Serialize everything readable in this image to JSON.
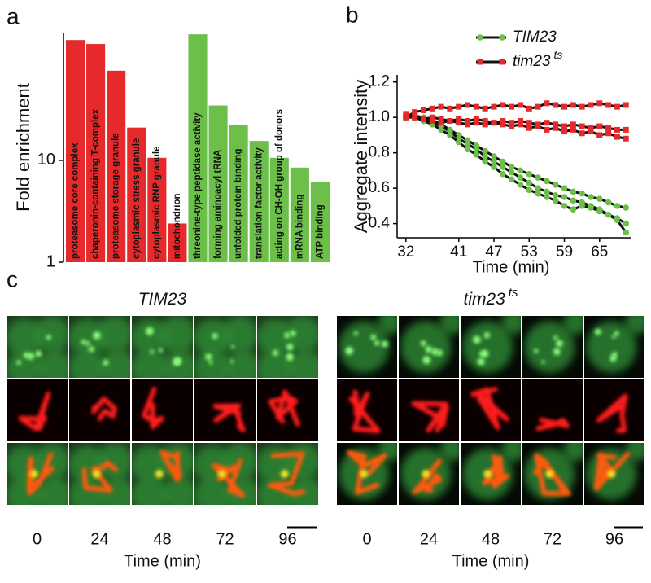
{
  "panel_labels": [
    "a",
    "b",
    "c"
  ],
  "chart_data": [
    {
      "type": "bar",
      "ylabel": "Fold enrichment",
      "log_scale": true,
      "categories": [
        "proteasome core complex",
        "chaperonin-containing T-complex",
        "proteasome storage granule",
        "cytoplasmic stress granule",
        "cytoplasmic RNP granule",
        "mitochondrion",
        "threonine-type peptidase activity",
        "forming aminoacyl tRNA",
        "unfolded protein binding",
        "translation factor activity",
        "acting on CH-OH group of donors",
        "mRNA binding",
        "ATP binding"
      ],
      "values": [
        152,
        139,
        76,
        21,
        10.6,
        2.4,
        173,
        34.6,
        22.4,
        15.5,
        10.6,
        8.5,
        6.2
      ],
      "colors": [
        "#e62a2c",
        "#e62a2c",
        "#e62a2c",
        "#e62a2c",
        "#e62a2c",
        "#e62a2c",
        "#6cc04a",
        "#6cc04a",
        "#6cc04a",
        "#6cc04a",
        "#6cc04a",
        "#6cc04a",
        "#6cc04a"
      ],
      "ylim": [
        1,
        180
      ],
      "yticks": [
        1,
        10
      ]
    },
    {
      "type": "line",
      "xlabel": "Time (min)",
      "ylabel": "Aggregate intensity",
      "x": [
        32,
        33.5,
        35,
        36.5,
        38,
        39.5,
        41,
        42.5,
        44,
        45.5,
        47,
        48.5,
        50,
        51.5,
        53,
        54.5,
        56,
        57.5,
        59,
        60.5,
        62,
        63.5,
        65,
        66.5,
        68,
        69.5
      ],
      "series": [
        {
          "name": "TIM23",
          "color": "#6cc04a",
          "marker": "circle",
          "replicates": [
            [
              1.0,
              1.01,
              1.0,
              0.98,
              0.96,
              0.93,
              0.9,
              0.87,
              0.84,
              0.81,
              0.78,
              0.75,
              0.72,
              0.7,
              0.68,
              0.66,
              0.64,
              0.62,
              0.6,
              0.58,
              0.57,
              0.55,
              0.54,
              0.52,
              0.5,
              0.49
            ],
            [
              1.0,
              1.0,
              0.99,
              0.97,
              0.95,
              0.92,
              0.88,
              0.85,
              0.82,
              0.78,
              0.75,
              0.72,
              0.69,
              0.66,
              0.63,
              0.6,
              0.58,
              0.56,
              0.55,
              0.53,
              0.52,
              0.5,
              0.48,
              0.45,
              0.42,
              0.35
            ],
            [
              1.01,
              1.0,
              0.98,
              0.96,
              0.93,
              0.9,
              0.86,
              0.82,
              0.79,
              0.75,
              0.72,
              0.68,
              0.65,
              0.62,
              0.59,
              0.57,
              0.55,
              0.53,
              0.5,
              0.48,
              0.5,
              0.49,
              0.47,
              0.45,
              0.43,
              0.4
            ]
          ]
        },
        {
          "name": "tim23",
          "superscript": "ts",
          "color": "#e62a2c",
          "marker": "square",
          "replicates": [
            [
              1.0,
              1.03,
              1.04,
              1.05,
              1.06,
              1.05,
              1.06,
              1.07,
              1.06,
              1.05,
              1.06,
              1.07,
              1.06,
              1.07,
              1.05,
              1.06,
              1.08,
              1.07,
              1.06,
              1.07,
              1.06,
              1.07,
              1.08,
              1.07,
              1.06,
              1.07
            ],
            [
              1.0,
              1.0,
              0.99,
              1.0,
              0.99,
              0.98,
              0.99,
              0.98,
              0.99,
              0.98,
              0.97,
              0.98,
              0.97,
              0.98,
              0.97,
              0.96,
              0.97,
              0.96,
              0.95,
              0.96,
              0.95,
              0.94,
              0.95,
              0.94,
              0.93,
              0.93
            ],
            [
              1.02,
              1.0,
              0.99,
              0.98,
              0.97,
              0.98,
              0.97,
              0.96,
              0.97,
              0.96,
              0.97,
              0.96,
              0.95,
              0.96,
              0.94,
              0.95,
              0.93,
              0.94,
              0.92,
              0.93,
              0.91,
              0.92,
              0.9,
              0.91,
              0.89,
              0.88
            ]
          ]
        }
      ],
      "xlim": [
        30.5,
        70.3
      ],
      "xticks": [
        32,
        41,
        47,
        53,
        59,
        65
      ],
      "ylim": [
        0.32,
        1.24
      ],
      "yticks": [
        0.4,
        0.6,
        0.8,
        {
          "value": 1.0,
          "label": "1.0"
        },
        1.2
      ]
    }
  ],
  "micrographs": [
    {
      "title": "TIM23",
      "times": [
        0,
        24,
        48,
        72,
        96
      ],
      "xlabel": "Time (min)"
    },
    {
      "title": "tim23",
      "superscript": "ts",
      "times": [
        0,
        24,
        48,
        72,
        96
      ],
      "xlabel": "Time (min)"
    }
  ]
}
